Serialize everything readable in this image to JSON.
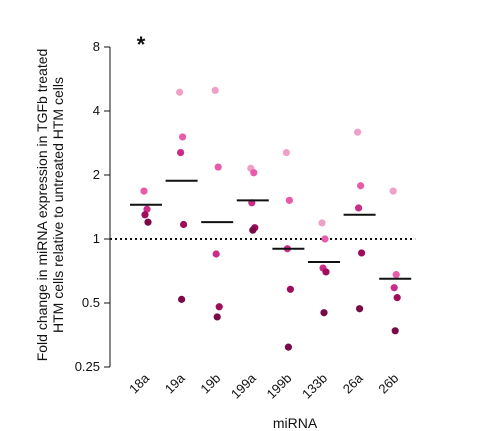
{
  "chart_data": {
    "type": "scatter",
    "xlabel": "miRNA",
    "ylabel_lines": [
      "Fold change in miRNA expression in TGFb treated",
      "HTM cells relative to untreated HTM cells"
    ],
    "y_scale": "log2",
    "ylim": [
      0.25,
      8
    ],
    "yticks": [
      0.25,
      0.5,
      1,
      2,
      4,
      8
    ],
    "ytick_labels": [
      "0.25",
      "0.5",
      "1",
      "2",
      "4",
      "8"
    ],
    "reference_line": {
      "y": 1,
      "style": "dotted"
    },
    "annotation": {
      "text": "*",
      "category": "18a"
    },
    "categories": [
      "18a",
      "19a",
      "19b",
      "199a",
      "199b",
      "133b",
      "26a",
      "26b"
    ],
    "means": [
      1.45,
      1.88,
      1.2,
      1.52,
      0.9,
      0.78,
      1.3,
      0.65
    ],
    "points": [
      [
        1.68,
        1.38,
        1.3,
        1.2
      ],
      [
        4.9,
        3.02,
        2.55,
        1.17,
        0.52
      ],
      [
        5.0,
        2.18,
        0.85,
        0.48,
        0.43
      ],
      [
        2.15,
        2.05,
        1.48,
        1.13,
        1.1
      ],
      [
        2.55,
        1.52,
        0.9,
        0.58,
        0.31
      ],
      [
        1.19,
        1.0,
        0.73,
        0.7,
        0.45
      ],
      [
        3.18,
        1.78,
        1.4,
        0.86,
        0.47
      ],
      [
        1.68,
        0.68,
        0.59,
        0.53,
        0.37
      ]
    ],
    "point_colors": [
      "#f0a0c8",
      "#e85aaa",
      "#cc2b88",
      "#9e0d5c",
      "#7a0a47"
    ]
  }
}
